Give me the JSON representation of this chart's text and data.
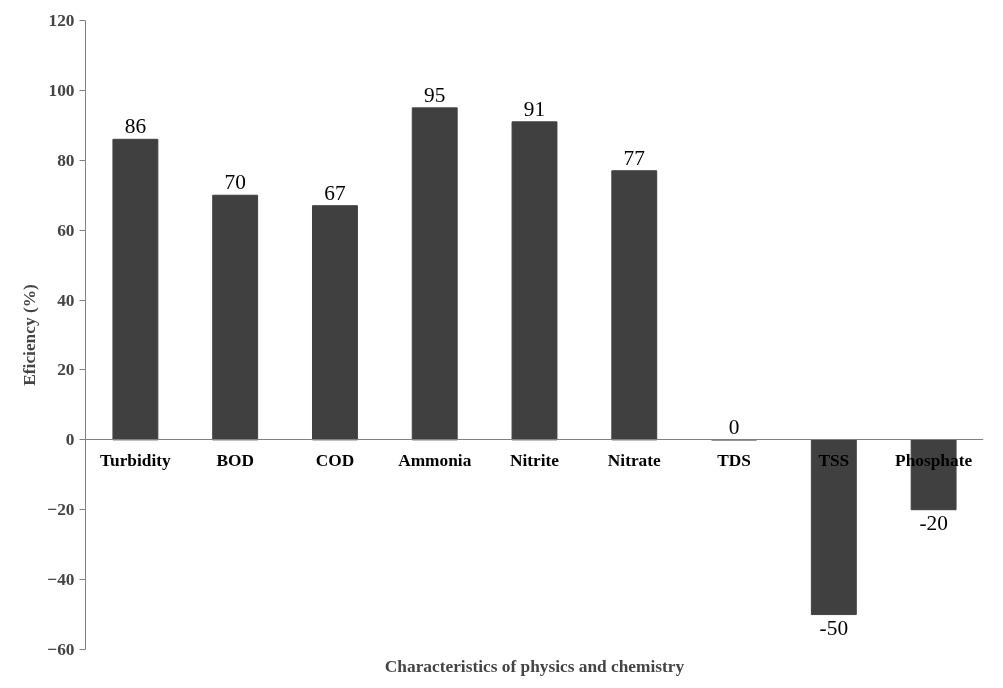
{
  "chart_data": {
    "type": "bar",
    "xlabel": "Characteristics of physics and chemistry",
    "ylabel": "Eficiency (%)",
    "categories": [
      "Turbidity",
      "BOD",
      "COD",
      "Ammonia",
      "Nitrite",
      "Nitrate",
      "TDS",
      "TSS",
      "Phosphate"
    ],
    "values": [
      86,
      70,
      67,
      95,
      91,
      77,
      0,
      -50,
      -20
    ],
    "color": "#404040",
    "ylim": [
      -60,
      120
    ],
    "yticks": [
      -60,
      -40,
      -20,
      0,
      20,
      40,
      60,
      80,
      100,
      120
    ],
    "grid": false,
    "data_labels": true
  }
}
